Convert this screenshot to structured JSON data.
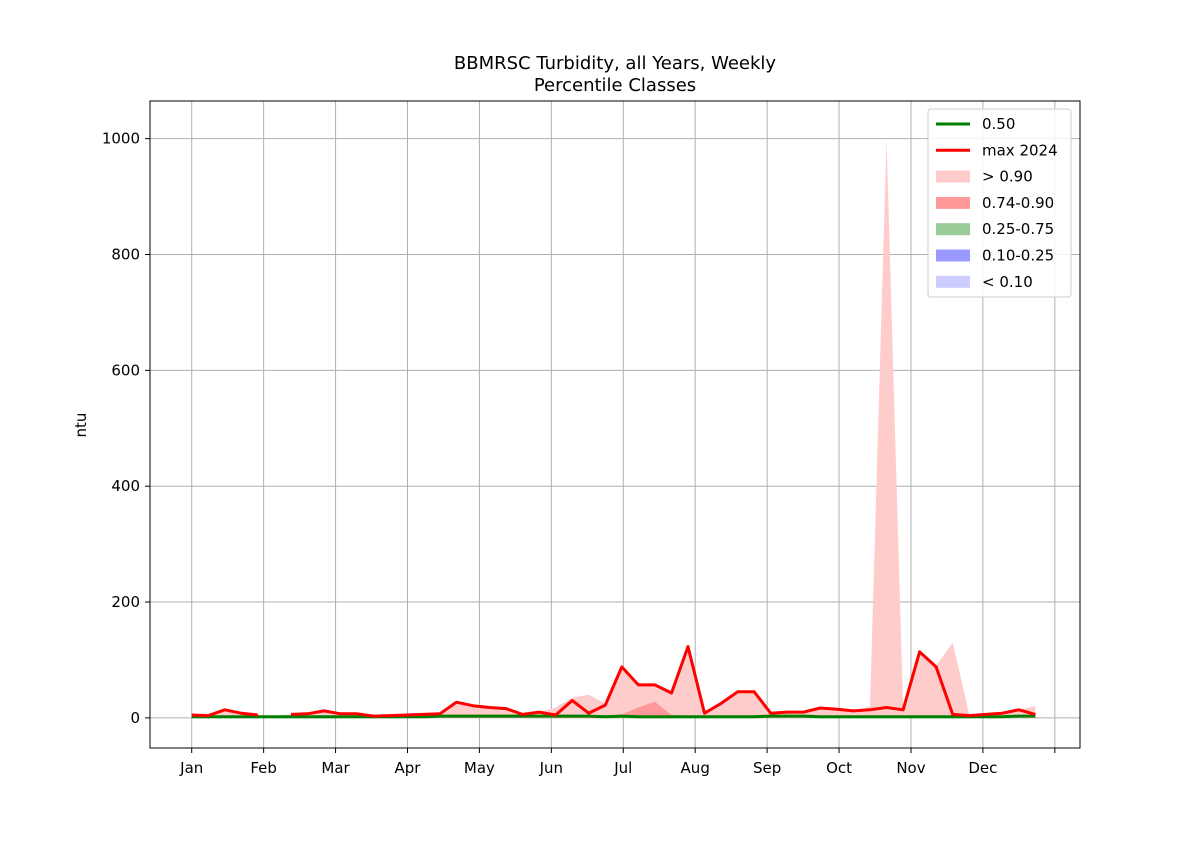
{
  "chart_data": {
    "type": "area",
    "title": "BBMRSC Turbidity, all Years, Weekly",
    "subtitle": "Percentile Classes",
    "xlabel": "",
    "ylabel": "ntu",
    "ylim": [
      -52,
      1065
    ],
    "xlim": [
      -0.58,
      12.35
    ],
    "grid": true,
    "legend_position": "upper right",
    "x_ticks": [
      {
        "pos": 0,
        "label": "Jan"
      },
      {
        "pos": 1,
        "label": "Feb"
      },
      {
        "pos": 2,
        "label": "Mar"
      },
      {
        "pos": 3,
        "label": "Apr"
      },
      {
        "pos": 4,
        "label": "May"
      },
      {
        "pos": 5,
        "label": "Jun"
      },
      {
        "pos": 6,
        "label": "Jul"
      },
      {
        "pos": 7,
        "label": "Aug"
      },
      {
        "pos": 8,
        "label": "Sep"
      },
      {
        "pos": 9,
        "label": "Oct"
      },
      {
        "pos": 10,
        "label": "Nov"
      },
      {
        "pos": 11,
        "label": "Dec"
      },
      {
        "pos": 12,
        "label": ""
      }
    ],
    "y_ticks": [
      0,
      200,
      400,
      600,
      800,
      1000
    ],
    "legend": [
      {
        "label": "0.50",
        "kind": "line",
        "color": "#008000"
      },
      {
        "label": "max 2024",
        "kind": "line",
        "color": "#ff0000"
      },
      {
        "label": "> 0.90",
        "kind": "patch",
        "color": "#ffcccc"
      },
      {
        "label": "0.74-0.90",
        "kind": "patch",
        "color": "#ff9999"
      },
      {
        "label": "0.25-0.75",
        "kind": "patch",
        "color": "#99cc99"
      },
      {
        "label": "0.10-0.25",
        "kind": "patch",
        "color": "#9999ff"
      },
      {
        "label": "< 0.10",
        "kind": "patch",
        "color": "#ccccff"
      }
    ],
    "x_week": [
      0.0,
      0.23,
      0.46,
      0.69,
      0.92,
      1.15,
      1.38,
      1.61,
      1.84,
      2.07,
      2.3,
      2.53,
      2.76,
      2.99,
      3.22,
      3.45,
      3.68,
      3.91,
      4.14,
      4.37,
      4.6,
      4.83,
      5.06,
      5.29,
      5.52,
      5.75,
      5.98,
      6.21,
      6.44,
      6.67,
      6.9,
      7.13,
      7.36,
      7.59,
      7.82,
      8.05,
      8.28,
      8.51,
      8.74,
      8.97,
      9.2,
      9.43,
      9.66,
      9.89,
      10.12,
      10.35,
      10.58,
      10.81,
      11.04,
      11.27,
      11.5,
      11.73
    ],
    "series": [
      {
        "name": "> 0.90",
        "color": "#ffcccc",
        "values": [
          4,
          4,
          13,
          8,
          5,
          4,
          6,
          6,
          12,
          7,
          6,
          3,
          3,
          4,
          5,
          7,
          27,
          21,
          18,
          16,
          5,
          10,
          18,
          35,
          40,
          25,
          85,
          57,
          57,
          43,
          122,
          8,
          25,
          45,
          45,
          8,
          10,
          10,
          17,
          15,
          12,
          20,
          1000,
          18,
          115,
          90,
          130,
          6,
          5,
          8,
          14,
          20
        ]
      },
      {
        "name": "0.74-0.90",
        "color": "#ff9999",
        "values": [
          3,
          3,
          3,
          3,
          3,
          3,
          3,
          3,
          3,
          3,
          3,
          3,
          3,
          3,
          4,
          4,
          4,
          4,
          4,
          4,
          4,
          4,
          4,
          4,
          4,
          4,
          6,
          18,
          28,
          5,
          4,
          4,
          4,
          4,
          4,
          4,
          4,
          4,
          4,
          4,
          4,
          4,
          4,
          4,
          4,
          4,
          4,
          4,
          4,
          4,
          4,
          4
        ]
      },
      {
        "name": "0.50",
        "color": "#008000",
        "values": [
          2,
          2,
          2,
          2,
          2,
          2,
          2,
          2,
          2,
          2,
          2,
          2,
          2,
          2,
          2,
          3,
          3,
          3,
          3,
          3,
          3,
          3,
          3,
          3,
          3,
          2,
          3,
          2,
          2,
          2,
          2,
          2,
          2,
          2,
          2,
          3,
          3,
          3,
          2,
          2,
          2,
          2,
          2,
          2,
          2,
          2,
          2,
          2,
          2,
          2,
          3,
          3
        ]
      },
      {
        "name": "max 2024",
        "color": "#ff0000",
        "values": [
          5,
          4,
          14,
          8,
          5,
          null,
          6,
          7,
          12,
          7,
          7,
          3,
          4,
          5,
          6,
          7,
          27,
          21,
          18,
          16,
          6,
          10,
          5,
          30,
          8,
          22,
          88,
          57,
          57,
          43,
          123,
          8,
          25,
          45,
          45,
          8,
          10,
          10,
          17,
          15,
          12,
          14,
          18,
          14,
          114,
          88,
          6,
          4,
          6,
          8,
          14,
          6
        ]
      }
    ]
  }
}
